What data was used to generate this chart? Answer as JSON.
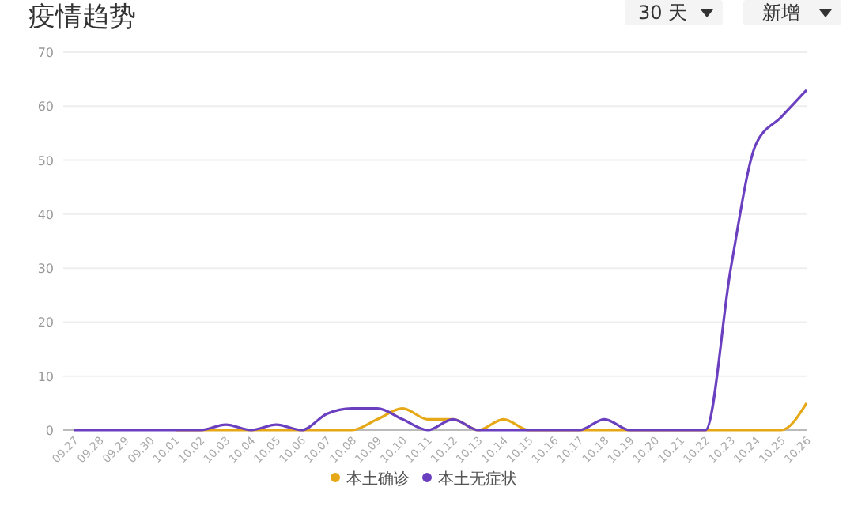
{
  "chart_data": {
    "type": "line",
    "title": "疫情趋势",
    "annotations": [
      "30 天",
      "新增"
    ],
    "categories": [
      "09.27",
      "09.28",
      "09.29",
      "09.30",
      "10.01",
      "10.02",
      "10.03",
      "10.04",
      "10.05",
      "10.06",
      "10.07",
      "10.08",
      "10.09",
      "10.10",
      "10.11",
      "10.12",
      "10.13",
      "10.14",
      "10.15",
      "10.16",
      "10.17",
      "10.18",
      "10.19",
      "10.20",
      "10.21",
      "10.22",
      "10.23",
      "10.24",
      "10.25",
      "10.26"
    ],
    "series": [
      {
        "name": "本土确诊",
        "color": "#e6a817",
        "values": [
          null,
          null,
          null,
          null,
          0,
          0,
          0,
          0,
          0,
          0,
          0,
          0,
          2,
          4,
          2,
          2,
          0,
          2,
          0,
          0,
          0,
          0,
          0,
          0,
          0,
          0,
          0,
          0,
          0,
          5
        ]
      },
      {
        "name": "本土无症状",
        "color": "#6a3fc0",
        "values": [
          0,
          0,
          0,
          0,
          0,
          0,
          1,
          0,
          1,
          0,
          3,
          4,
          4,
          2,
          0,
          2,
          0,
          0,
          0,
          0,
          0,
          2,
          0,
          0,
          0,
          0,
          30,
          53,
          58,
          63
        ]
      }
    ],
    "ylim": [
      0,
      70
    ],
    "yticks": [
      0,
      10,
      20,
      30,
      40,
      50,
      60,
      70
    ],
    "grid": "y",
    "legend": "bottom"
  }
}
